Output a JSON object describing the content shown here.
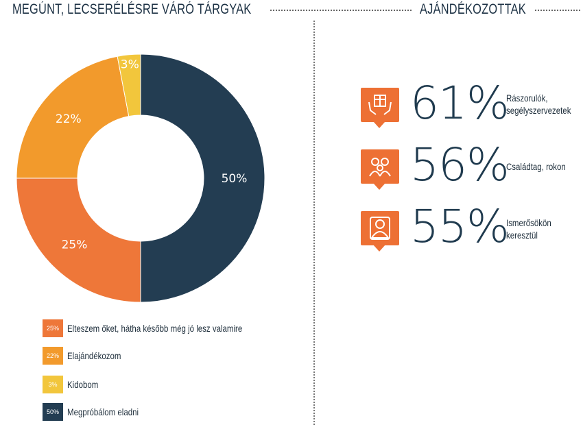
{
  "left_header": "MEGÚNT, LECSERÉLÉSRE VÁRÓ TÁRGYAK",
  "right_header": "AJÁNDÉKOZOTTAK",
  "chart_data": {
    "type": "pie",
    "donut": true,
    "slices": [
      {
        "label": "Megpróbálom eladni",
        "value": 50,
        "display": "50%",
        "color": "#233d52"
      },
      {
        "label": "Elteszem őket, hátha később még jó lesz valamire",
        "value": 25,
        "display": "25%",
        "color": "#ee7739"
      },
      {
        "label": "Elajándékozom",
        "value": 22,
        "display": "22%",
        "color": "#f29a2c"
      },
      {
        "label": "Kidobom",
        "value": 3,
        "display": "3%",
        "color": "#f2c63c"
      }
    ],
    "legend_position": "bottom"
  },
  "legend": [
    {
      "pct": "25%",
      "label": "Elteszem őket, hátha később még jó lesz valamire",
      "color": "#ee7739"
    },
    {
      "pct": "22%",
      "label": "Elajándékozom",
      "color": "#f29a2c"
    },
    {
      "pct": "3%",
      "label": "Kidobom",
      "color": "#f2c63c"
    },
    {
      "pct": "50%",
      "label": "Megpróbálom eladni",
      "color": "#233d52"
    }
  ],
  "stats": [
    {
      "pct": "61%",
      "line1": "Rászorulók,",
      "line2": "segélyszervezetek",
      "icon": "gift-hands-icon"
    },
    {
      "pct": "56%",
      "line1": "Családtag, rokon",
      "line2": "",
      "icon": "family-icon"
    },
    {
      "pct": "55%",
      "line1": "Ismerősökön",
      "line2": "keresztül",
      "icon": "person-icon"
    }
  ],
  "colors": {
    "accent": "#ed7034",
    "navy": "#1f3a4e"
  }
}
